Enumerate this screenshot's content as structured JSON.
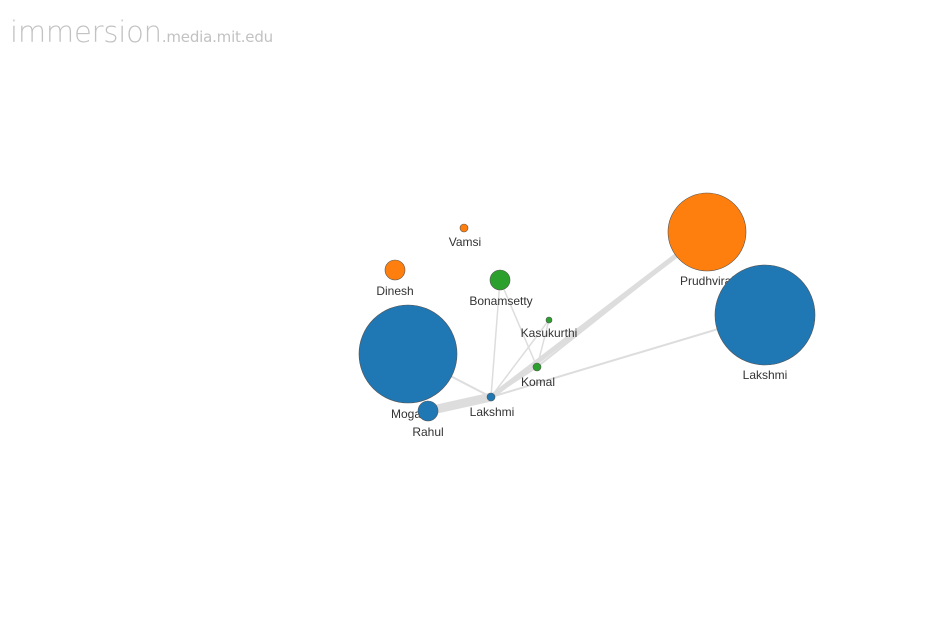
{
  "brand": {
    "main": "immersion",
    "sub": ".media.mit.edu"
  },
  "colors": {
    "blue": "#1f77b4",
    "orange": "#ff7f0e",
    "green": "#2ca02c",
    "edge": "#dddddd"
  },
  "nodes": [
    {
      "id": "vamsi",
      "label": "Vamsi",
      "color": "orange"
    },
    {
      "id": "dinesh",
      "label": "Dinesh",
      "color": "orange"
    },
    {
      "id": "bonamsetty",
      "label": "Bonamsetty",
      "color": "green"
    },
    {
      "id": "kasukurthi",
      "label": "Kasukurthi",
      "color": "green"
    },
    {
      "id": "komal",
      "label": "Komal",
      "color": "green"
    },
    {
      "id": "prudhviraj",
      "label": "Prudhviraj",
      "color": "orange"
    },
    {
      "id": "lakshmi-large",
      "label": "Lakshmi",
      "color": "blue"
    },
    {
      "id": "moga",
      "label": "Moga",
      "color": "blue"
    },
    {
      "id": "rahul",
      "label": "Rahul",
      "color": "blue"
    },
    {
      "id": "lakshmi-center",
      "label": "Lakshmi",
      "color": "blue"
    }
  ],
  "edges": [
    {
      "source": "lakshmi-center",
      "target": "rahul"
    },
    {
      "source": "lakshmi-center",
      "target": "prudhviraj"
    },
    {
      "source": "lakshmi-center",
      "target": "lakshmi-large"
    },
    {
      "source": "lakshmi-center",
      "target": "moga"
    },
    {
      "source": "lakshmi-center",
      "target": "komal"
    },
    {
      "source": "lakshmi-center",
      "target": "kasukurthi"
    },
    {
      "source": "lakshmi-center",
      "target": "bonamsetty"
    },
    {
      "source": "komal",
      "target": "prudhviraj"
    },
    {
      "source": "komal",
      "target": "bonamsetty"
    },
    {
      "source": "komal",
      "target": "kasukurthi"
    }
  ]
}
